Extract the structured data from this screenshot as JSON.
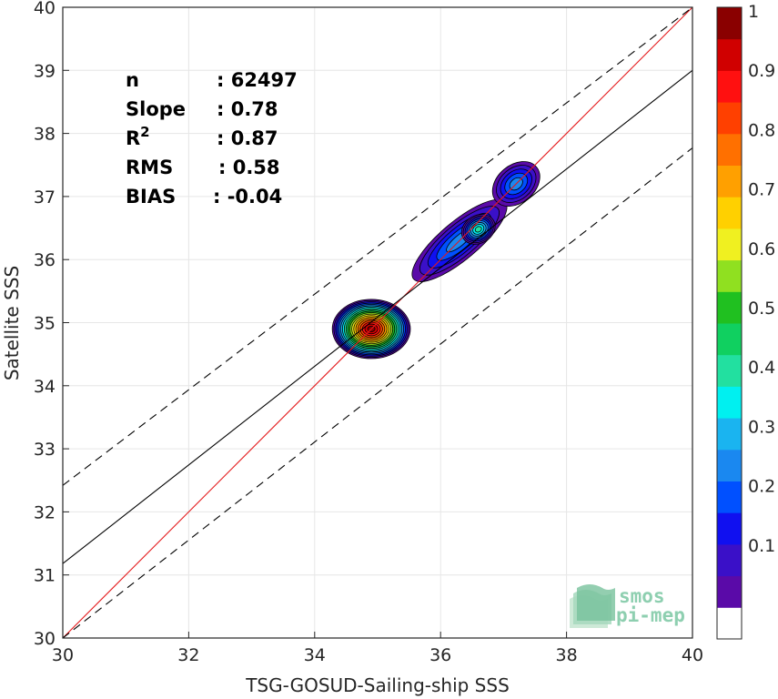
{
  "chart_data": {
    "type": "scatter",
    "xlabel": "TSG-GOSUD-Sailing-ship SSS",
    "ylabel": "Satellite SSS",
    "xlim": [
      30,
      40
    ],
    "ylim": [
      30,
      40
    ],
    "xticks": [
      "30",
      "32",
      "34",
      "36",
      "38",
      "40"
    ],
    "yticks": [
      "30",
      "31",
      "32",
      "33",
      "34",
      "35",
      "36",
      "37",
      "38",
      "39",
      "40"
    ],
    "grid": true,
    "stats": [
      {
        "label": "n",
        "value": ": 62497"
      },
      {
        "label": "Slope",
        "value": ": 0.78"
      },
      {
        "label": "R",
        "sup": "2",
        "value": ": 0.87"
      },
      {
        "label": "RMS",
        "value": ": 0.58"
      },
      {
        "label": "BIAS",
        "value": ": -0.04"
      }
    ],
    "lines": [
      {
        "kind": "identity",
        "color": "#e41a1c",
        "dash": false,
        "points": [
          [
            30,
            30
          ],
          [
            40,
            40
          ]
        ]
      },
      {
        "kind": "regression",
        "color": "#000000",
        "dash": false,
        "points": [
          [
            30,
            31.18
          ],
          [
            40,
            39.0
          ]
        ]
      },
      {
        "kind": "upper-bound",
        "color": "#000000",
        "dash": true,
        "points": [
          [
            30,
            32.42
          ],
          [
            40,
            40.0
          ]
        ]
      },
      {
        "kind": "lower-bound",
        "color": "#000000",
        "dash": true,
        "points": [
          [
            30,
            30.0
          ],
          [
            40,
            37.77
          ]
        ]
      }
    ],
    "density_clusters": [
      {
        "cx": 34.9,
        "cy": 34.9,
        "rx": 0.62,
        "ry": 0.47,
        "peak": 1.0,
        "rot": 0
      },
      {
        "cx": 36.3,
        "cy": 36.3,
        "rx": 0.95,
        "ry": 0.3,
        "peak": 0.24,
        "rot": -40
      },
      {
        "cx": 36.6,
        "cy": 36.48,
        "rx": 0.28,
        "ry": 0.22,
        "peak": 0.42,
        "rot": -30
      },
      {
        "cx": 37.2,
        "cy": 37.2,
        "rx": 0.42,
        "ry": 0.3,
        "peak": 0.26,
        "rot": -40
      }
    ],
    "colorbar": {
      "range": [
        0,
        1
      ],
      "ticks": [
        "0.1",
        "0.2",
        "0.3",
        "0.4",
        "0.5",
        "0.6",
        "0.7",
        "0.8",
        "0.9",
        "1"
      ],
      "colors": [
        "#ffffff",
        "#5a0aa8",
        "#3a10c8",
        "#1010f0",
        "#0050ff",
        "#1a88f0",
        "#1ab4f0",
        "#00f0f0",
        "#22e0a0",
        "#10d060",
        "#20c020",
        "#90e020",
        "#f0f020",
        "#ffd000",
        "#ffa000",
        "#ff7000",
        "#ff4000",
        "#ff1010",
        "#d00000",
        "#8a0000"
      ]
    }
  },
  "logo": {
    "line1": "smos",
    "line2": "pi-mep"
  }
}
